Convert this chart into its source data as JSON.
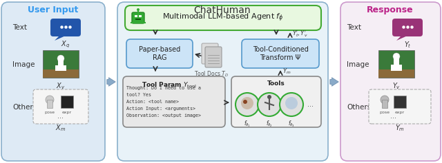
{
  "title_chathuman": "ChatHuman",
  "title_user_input": "User Input",
  "title_response": "Response",
  "bg_user": "#deeaf5",
  "bg_response": "#f5eef5",
  "bg_chathuman": "#e8f2f8",
  "color_user_title": "#3399ee",
  "color_response_title": "#bb2288",
  "color_chathuman_title": "#333333",
  "color_rag_box": "#cce4f7",
  "color_rag_border": "#5599cc",
  "color_tool_cond_box": "#cce4f7",
  "color_tool_cond_border": "#5599cc",
  "color_tool_param_box": "#e8e8e8",
  "color_tool_param_border": "#888888",
  "color_tools_box": "#f0f0f0",
  "color_tools_border": "#888888",
  "color_llm_box": "#e8f8e0",
  "color_llm_border": "#44aa33",
  "color_text_bubble_user": "#2255aa",
  "color_text_bubble_response": "#993377",
  "double_arrow_color_fill": "#8aaac8",
  "double_arrow_color_edge": "#6688aa",
  "inner_arrow_color": "#333333",
  "chathuman_border": "#8ab0cc",
  "user_border": "#8ab0cc",
  "response_border": "#cc99cc",
  "tool_circle_border": "#33aa33"
}
